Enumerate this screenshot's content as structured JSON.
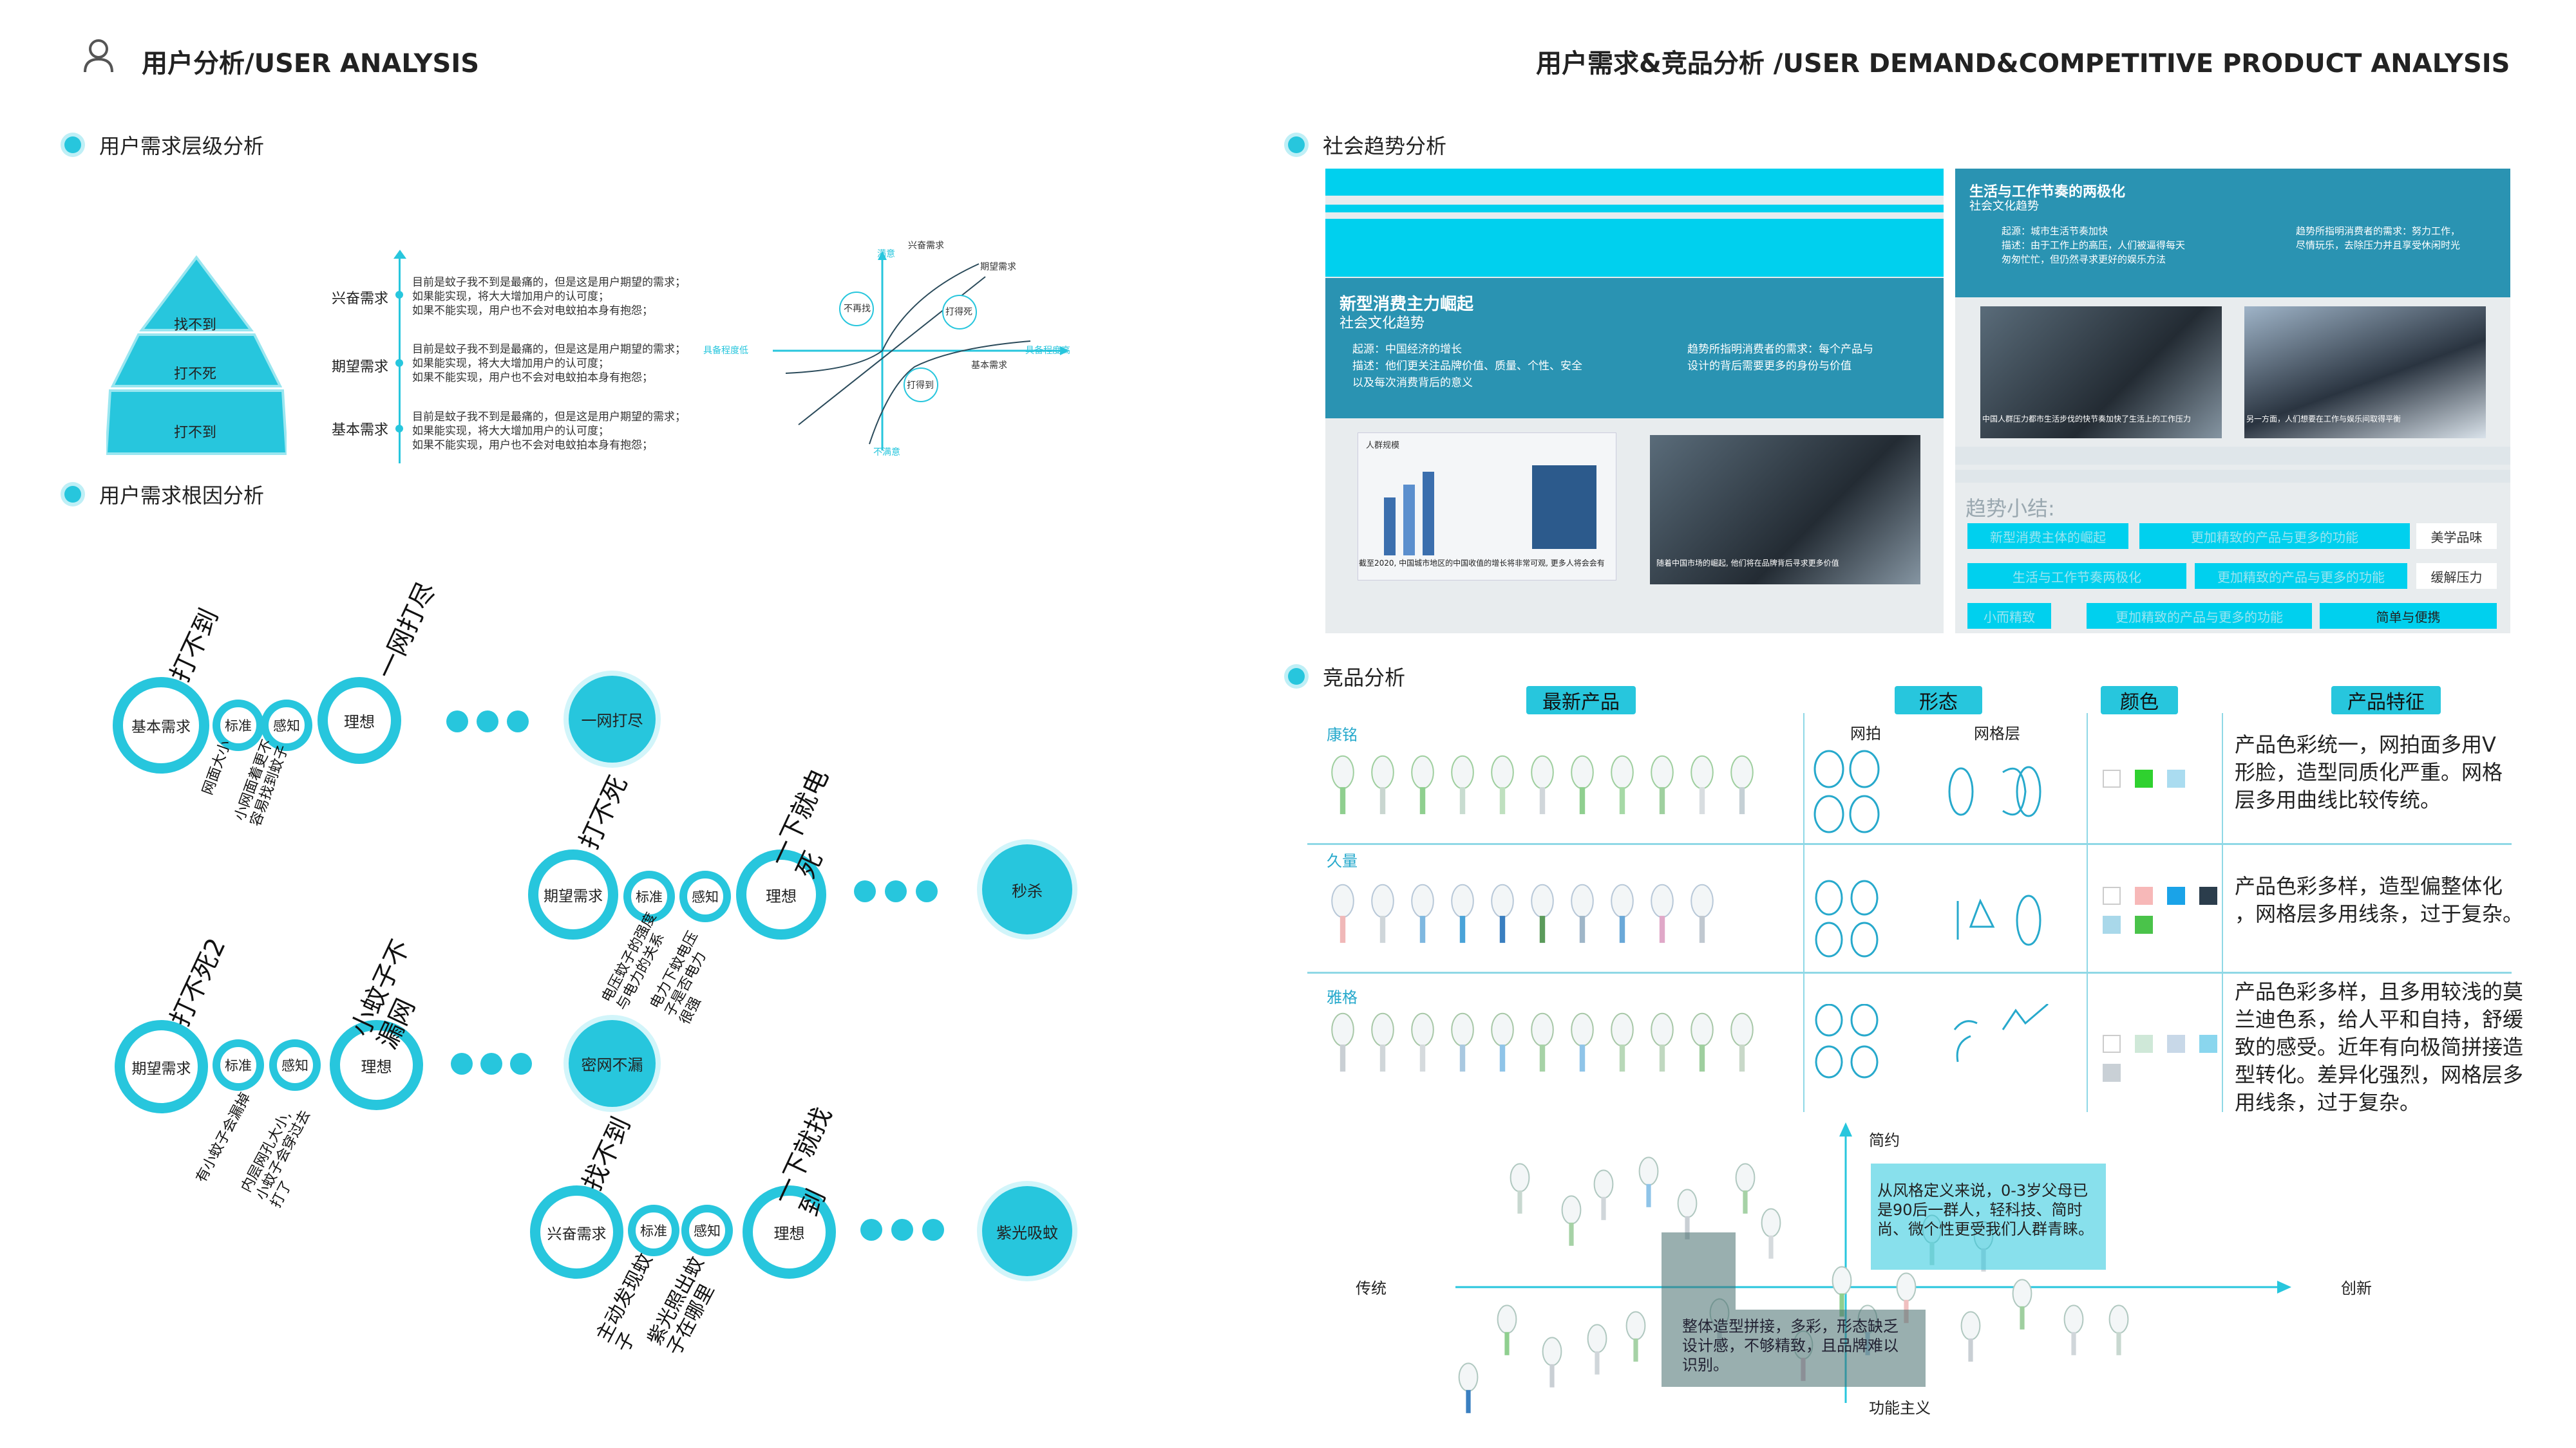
{
  "header": {
    "left_title": "用户分析/USER ANALYSIS",
    "right_title": "用户需求&竞品分析 /USER DEMAND&COMPETITIVE PRODUCT ANALYSIS"
  },
  "left": {
    "sec1_title": "用户需求层级分析",
    "pyramid": [
      "找不到",
      "打不死",
      "打不到"
    ],
    "levels": [
      {
        "name": "兴奋需求",
        "lines": [
          "目前是蚊子我不到是最痛的，但是这是用户期望的需求；",
          "如果能实现，将大大增加用户的认可度；",
          "如果不能实现，用户也不会对电蚊拍本身有抱怨；"
        ]
      },
      {
        "name": "期望需求",
        "lines": [
          "目前是蚊子我不到是最痛的，但是这是用户期望的需求；",
          "如果能实现，将大大增加用户的认可度；",
          "如果不能实现，用户也不会对电蚊拍本身有抱怨；"
        ]
      },
      {
        "name": "基本需求",
        "lines": [
          "目前是蚊子我不到是最痛的，但是这是用户期望的需求；",
          "如果能实现，将大大增加用户的认可度；",
          "如果不能实现，用户也不会对电蚊拍本身有抱怨；"
        ]
      }
    ],
    "kano": {
      "top": "满意",
      "bottom": "不满意",
      "left": "具备程度低",
      "right": "具备程度高",
      "c1": "兴奋需求",
      "c2": "期望需求",
      "c3": "基本需求",
      "b1": "不再找",
      "b2": "打得死",
      "b3": "打得到"
    },
    "sec2_title": "用户需求根因分析",
    "root": {
      "row1": {
        "big": "基本需求",
        "s1": "标准",
        "s2": "感知",
        "ideal": "理想",
        "goal": "一网打尽",
        "top_a": "打不到",
        "top_b": "一网打尽",
        "bot_a": "网面大小",
        "bot_b": "小网面着更不",
        "bot_c": "容易找到蚊子"
      },
      "row2": {
        "big": "期望需求",
        "s1": "标准",
        "s2": "感知",
        "ideal": "理想",
        "goal": "秒杀",
        "top_a": "打不死",
        "top_b": "一下就电",
        "top_c": "死",
        "bot_a": "电压蚊子的强度",
        "bot_b": "与电力的关系",
        "bot_c": "电力下蚊电压",
        "bot_d": "子是否电力",
        "bot_e": "很强"
      },
      "row3": {
        "big": "期望需求",
        "s1": "标准",
        "s2": "感知",
        "ideal": "理想",
        "goal": "密网不漏",
        "top_a": "打不死2",
        "top_b": "小蚊子不",
        "top_c": "漏网",
        "bot_a": "有小蚊子会漏掉",
        "bot_b": "内层网孔大小,",
        "bot_c": "小蚊子会穿过去",
        "bot_d": "打了"
      },
      "row4": {
        "big": "兴奋需求",
        "s1": "标准",
        "s2": "感知",
        "ideal": "理想",
        "goal": "紫光吸蚊",
        "top_a": "找不到",
        "top_b": "一下就找",
        "top_c": "到",
        "bot_a": "主动发现蚊",
        "bot_b": "子",
        "bot_c": "紫光照出蚊",
        "bot_d": "子在哪里"
      }
    }
  },
  "right": {
    "sec1_title": "社会趋势分析",
    "trend_a": {
      "title": "新型消费主力崛起",
      "sub": "社会文化趋势",
      "b1": "起源：中国经济的增长",
      "b2": "描述：他们更关注品牌价值、质量、个性、安全",
      "b2b": "以及每次消费背后的意义",
      "b3": "趋势所指明消费者的需求：每个产品与",
      "b3b": "设计的背后需要更多的身份与价值",
      "cap1": "截至2020, 中国城市地区的中国收值的增长将非常可观, 更多人将会会有",
      "cap2": "随着中国市场的崛起, 他们将在品牌背后寻求更多价值",
      "chart_title": "人群规模"
    },
    "trend_b": {
      "title": "生活与工作节奏的两极化",
      "sub": "社会文化趋势",
      "b1": "起源：城市生活节奏加快",
      "b2": "描述：由于工作上的高压，人们被逼得每天",
      "b2b": "匆匆忙忙，但仍然寻求更好的娱乐方法",
      "b3": "趋势所指明消费者的需求：努力工作，",
      "b3b": "尽情玩乐，去除压力并且享受休闲时光",
      "cap1": "中国人群压力都市生活步伐的快节奏加快了生活上的工作压力",
      "cap2": "另一方面，人们想要在工作与娱乐间取得平衡"
    },
    "summary": {
      "title": "趋势小结:",
      "tags": [
        "新型消费主体的崛起",
        "生活与工作节奏两极化",
        "小而精致",
        "更加精致的产品与更多的功能",
        "更加精致的产品与更多的功能",
        "更加精致的产品与更多的功能"
      ],
      "tags2": [
        "美学品味",
        "缓解压力",
        "简单与便携"
      ]
    },
    "sec2_title": "竞品分析",
    "cols": [
      "最新产品",
      "形态",
      "颜色",
      "产品特征"
    ],
    "sub_cols": [
      "网拍",
      "网格层"
    ],
    "brands": [
      {
        "name": "康铭",
        "desc": [
          "产品色彩统一，网拍面多用V",
          "形脸，造型同质化严重。网格",
          "层多用曲线比较传统。"
        ],
        "colors": [
          "#ffffff",
          "#2fd12f",
          "#aadcf0"
        ]
      },
      {
        "name": "久量",
        "desc": [
          "产品色彩多样，造型偏整体化",
          "，网格层多用线条，过于复杂。"
        ],
        "colors": [
          "#ffffff",
          "#f7b8b8",
          "#1aa3e8",
          "#2b3d4c",
          "#a9d8ea",
          "#4ac34a"
        ]
      },
      {
        "name": "雅格",
        "desc": [
          "产品色彩多样，且多用较浅的莫",
          "兰迪色系，给人平和自持，舒缓",
          "致的感受。近年有向极简拼接造",
          "型转化。差异化强烈，网格层多",
          "用线条，过于复杂。"
        ],
        "colors": [
          "#ffffff",
          "#cfe8d8",
          "#c8d8e8",
          "#8ad6ee",
          "#c9d0d6"
        ]
      }
    ],
    "map": {
      "top": "简约",
      "bottom": "功能主义",
      "left": "传统",
      "right": "创新",
      "note1": [
        "从风格定义来说，0-3岁父母已",
        "是90后一群人，轻科技、简时",
        "尚、微个性更受我们人群青睐。"
      ],
      "note2": [
        "整体造型拼接，多彩，形态缺乏",
        "设计感，不够精致，且品牌难以",
        "识别。"
      ]
    }
  }
}
